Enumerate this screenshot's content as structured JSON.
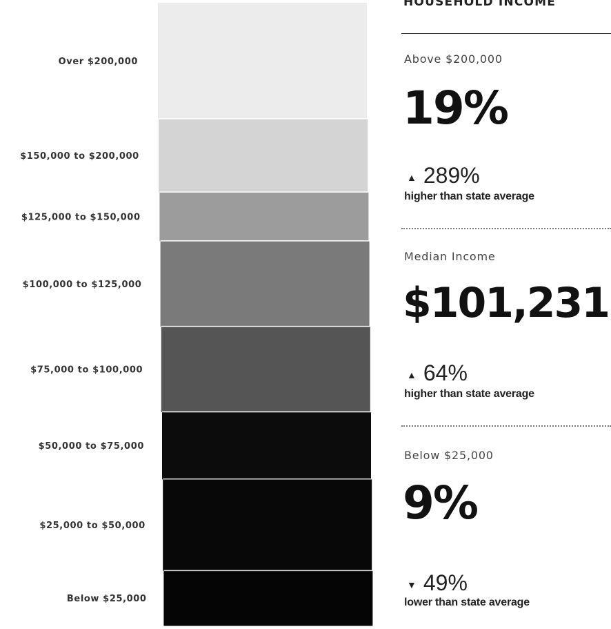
{
  "chart_data": {
    "type": "bar",
    "orientation": "stacked-column",
    "categories": [
      "Over $200,000",
      "$150,000 to $200,000",
      "$125,000 to $150,000",
      "$100,000 to $125,000",
      "$75,000 to $100,000",
      "$50,000 to $75,000",
      "$25,000 to $50,000",
      "Below $25,000"
    ],
    "values": [
      19,
      12,
      8,
      14,
      14,
      11,
      15,
      9
    ],
    "shades": [
      "#ececec",
      "#d4d4d4",
      "#9c9c9c",
      "#7a7a7a",
      "#555555",
      "#0c0c0c",
      "#080808",
      "#050505"
    ]
  },
  "panel": {
    "title": "HOUSEHOLD INCOME",
    "stats": [
      {
        "caption": "Above $200,000",
        "value": "19%",
        "arrow": "▲",
        "change": "289%",
        "note": "higher than state average"
      },
      {
        "caption": "Median Income",
        "value": "$101,231",
        "arrow": "▲",
        "change": "64%",
        "note": "higher than state average"
      },
      {
        "caption": "Below $25,000",
        "value": "9%",
        "arrow": "▼",
        "change": "49%",
        "note": "lower than state average"
      }
    ]
  }
}
